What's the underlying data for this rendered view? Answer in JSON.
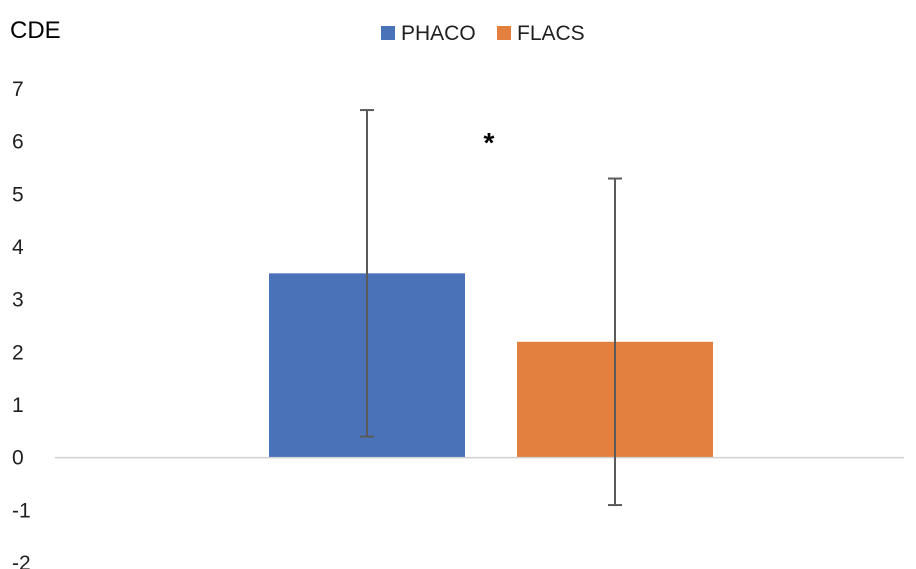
{
  "chart_data": {
    "type": "bar",
    "ylabel": "CDE",
    "ylim": [
      -2,
      7
    ],
    "yticks": [
      7,
      6,
      5,
      4,
      3,
      2,
      1,
      0,
      -1,
      -2
    ],
    "grid": false,
    "legend_position": "top-center",
    "series": [
      {
        "name": "PHACO",
        "value": 3.5,
        "error_low": 0.4,
        "error_high": 6.6,
        "color": "#4a72b8"
      },
      {
        "name": "FLACS",
        "value": 2.2,
        "error_low": -0.9,
        "error_high": 5.3,
        "color": "#e37f3f"
      }
    ],
    "annotations": [
      {
        "text": "*"
      }
    ]
  }
}
